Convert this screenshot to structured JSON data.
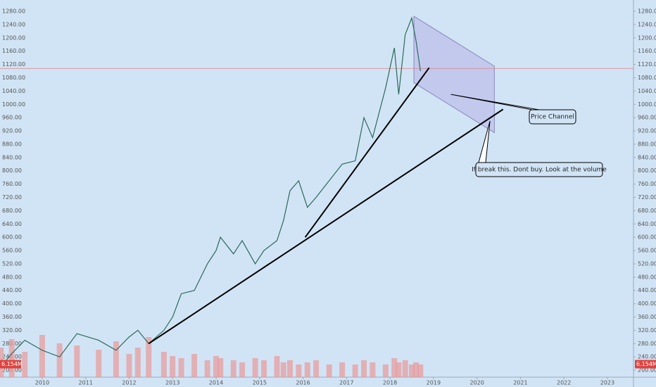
{
  "chart_data": {
    "type": "line",
    "series": [
      {
        "color": "#2b6a5a",
        "x": [
          2009.05,
          2009.3,
          2009.6,
          2010,
          2010.4,
          2010.8,
          2011.3,
          2011.7,
          2012,
          2012.2,
          2012.45,
          2012.8,
          2013,
          2013.2,
          2013.5,
          2013.8,
          2014,
          2014.1,
          2014.4,
          2014.6,
          2014.9,
          2015.1,
          2015.4,
          2015.55,
          2015.7,
          2015.9,
          2016.1,
          2016.3,
          2016.6,
          2016.9,
          2017.2,
          2017.4,
          2017.6,
          2017.9,
          2018.1,
          2018.2,
          2018.35,
          2018.5,
          2018.6,
          2018.7
        ],
        "values": [
          210,
          250,
          290,
          260,
          240,
          310,
          290,
          260,
          300,
          320,
          280,
          320,
          360,
          430,
          440,
          520,
          560,
          600,
          550,
          590,
          520,
          560,
          590,
          650,
          740,
          770,
          690,
          720,
          770,
          820,
          830,
          960,
          900,
          1050,
          1170,
          1030,
          1210,
          1260,
          1190,
          1100
        ]
      }
    ],
    "volume": {
      "color": "#e89a9a",
      "values": [
        14,
        18,
        12,
        20,
        16,
        15,
        13,
        17,
        11,
        14,
        19,
        12,
        10,
        9,
        11,
        8,
        10,
        9,
        8,
        7,
        9,
        8,
        10,
        7,
        8,
        6,
        7,
        8,
        6,
        7,
        6,
        8,
        7,
        6,
        9,
        7,
        8,
        6,
        7,
        6
      ],
      "vlim": [
        0,
        30
      ],
      "current": {
        "value": 6.154,
        "label": "6.154M"
      }
    },
    "xlim": [
      2009.03,
      2023.6
    ],
    "xticks": [
      2010,
      2011,
      2012,
      2013,
      2014,
      2015,
      2016,
      2017,
      2018,
      2019,
      2020,
      2021,
      2022,
      2023
    ],
    "ylim": [
      179,
      1314
    ],
    "yticks": [
      {
        "value": 200,
        "label": "200.00"
      },
      {
        "value": 240,
        "label": "240.00"
      },
      {
        "value": 280,
        "label": "280.00"
      },
      {
        "value": 320,
        "label": "320.00"
      },
      {
        "value": 360,
        "label": "360.00"
      },
      {
        "value": 400,
        "label": "400.00"
      },
      {
        "value": 440,
        "label": "440.00"
      },
      {
        "value": 480,
        "label": "480.00"
      },
      {
        "value": 520,
        "label": "520.00"
      },
      {
        "value": 560,
        "label": "560.00"
      },
      {
        "value": 600,
        "label": "600.00"
      },
      {
        "value": 640,
        "label": "640.00"
      },
      {
        "value": 680,
        "label": "680.00"
      },
      {
        "value": 720,
        "label": "720.00"
      },
      {
        "value": 760,
        "label": "760.00"
      },
      {
        "value": 800,
        "label": "800.00"
      },
      {
        "value": 840,
        "label": "840.00"
      },
      {
        "value": 880,
        "label": "880.00"
      },
      {
        "value": 920,
        "label": "920.00"
      },
      {
        "value": 960,
        "label": "960.00"
      },
      {
        "value": 1000,
        "label": "1000.00"
      },
      {
        "value": 1040,
        "label": "1040.00"
      },
      {
        "value": 1080,
        "label": "1080.00"
      },
      {
        "value": 1120,
        "label": "1120.00"
      },
      {
        "value": 1160,
        "label": "1160.00"
      },
      {
        "value": 1200,
        "label": "1200.00"
      },
      {
        "value": 1240,
        "label": "1240.00"
      },
      {
        "value": 1280,
        "label": "1280.00"
      }
    ],
    "hline": {
      "value": 1108,
      "color": "#e08080"
    },
    "trendlines": [
      {
        "from": [
          2012.45,
          280
        ],
        "to": [
          2020.6,
          985
        ]
      },
      {
        "from": [
          2016.05,
          600
        ],
        "to": [
          2018.9,
          1110
        ]
      }
    ],
    "channel": {
      "color": "#b8b8e8",
      "points": [
        [
          2018.55,
          1265
        ],
        [
          2020.4,
          1115
        ],
        [
          2020.4,
          915
        ],
        [
          2018.55,
          1065
        ]
      ]
    },
    "callouts": [
      {
        "text": "Price Channel",
        "anchor": [
          2019.4,
          1030
        ]
      },
      {
        "text": "If break this. Dont buy. Look at the volume",
        "anchor": [
          2020.3,
          950
        ]
      }
    ]
  }
}
